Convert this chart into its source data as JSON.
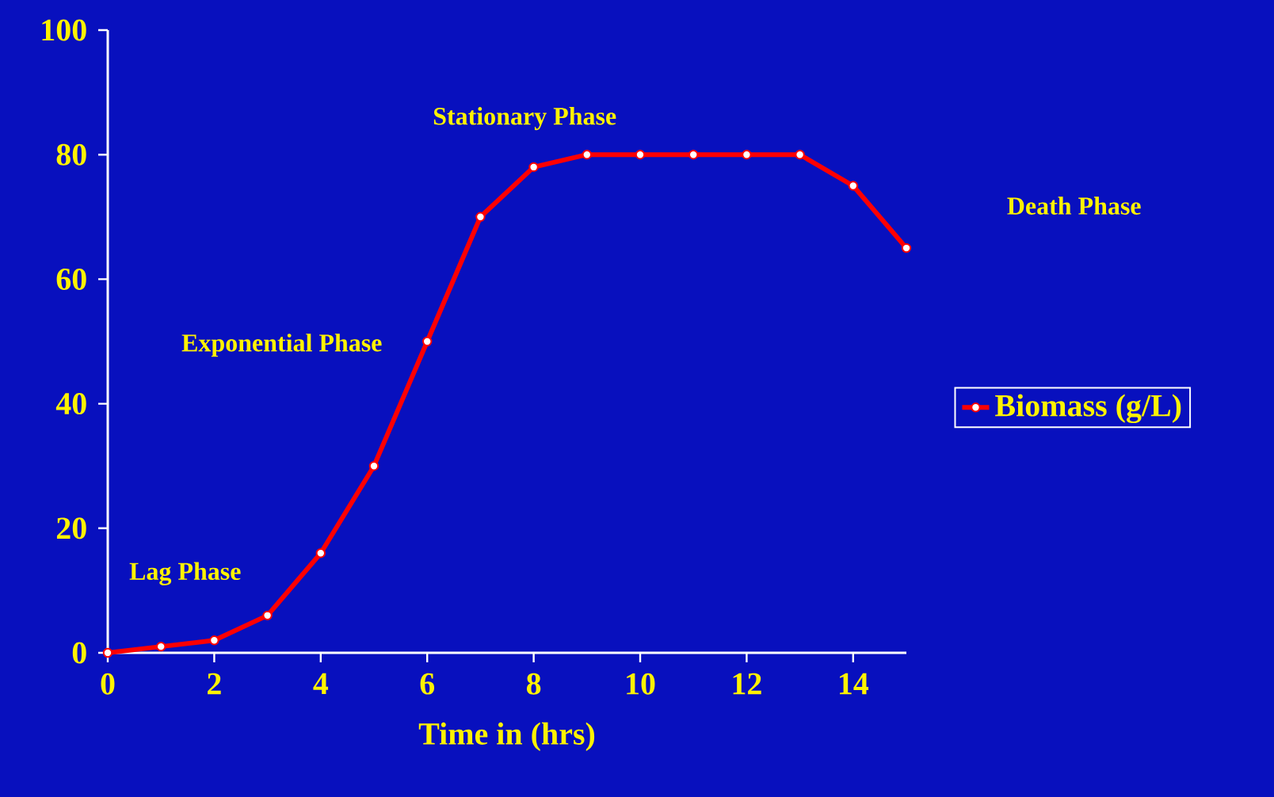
{
  "chart_data": {
    "type": "line",
    "xlabel": "Time in (hrs)",
    "x": [
      0,
      1,
      2,
      3,
      4,
      5,
      6,
      7,
      8,
      9,
      10,
      11,
      12,
      13,
      14,
      15
    ],
    "series": [
      {
        "name": "Biomass (g/L)",
        "color": "#ff0000",
        "values": [
          0,
          1,
          2,
          6,
          16,
          30,
          50,
          70,
          78,
          80,
          80,
          80,
          80,
          80,
          75,
          65
        ]
      }
    ],
    "xlim": [
      0,
      15
    ],
    "ylim": [
      0,
      100
    ],
    "xticks": [
      0,
      2,
      4,
      6,
      8,
      10,
      12,
      14
    ],
    "yticks": [
      0,
      20,
      40,
      60,
      80,
      100
    ],
    "annotations": [
      "Lag Phase",
      "Exponential Phase",
      "Stationary Phase",
      "Death Phase"
    ],
    "legend": "right",
    "marker": "circle",
    "line_style": "solid",
    "grid": false
  }
}
